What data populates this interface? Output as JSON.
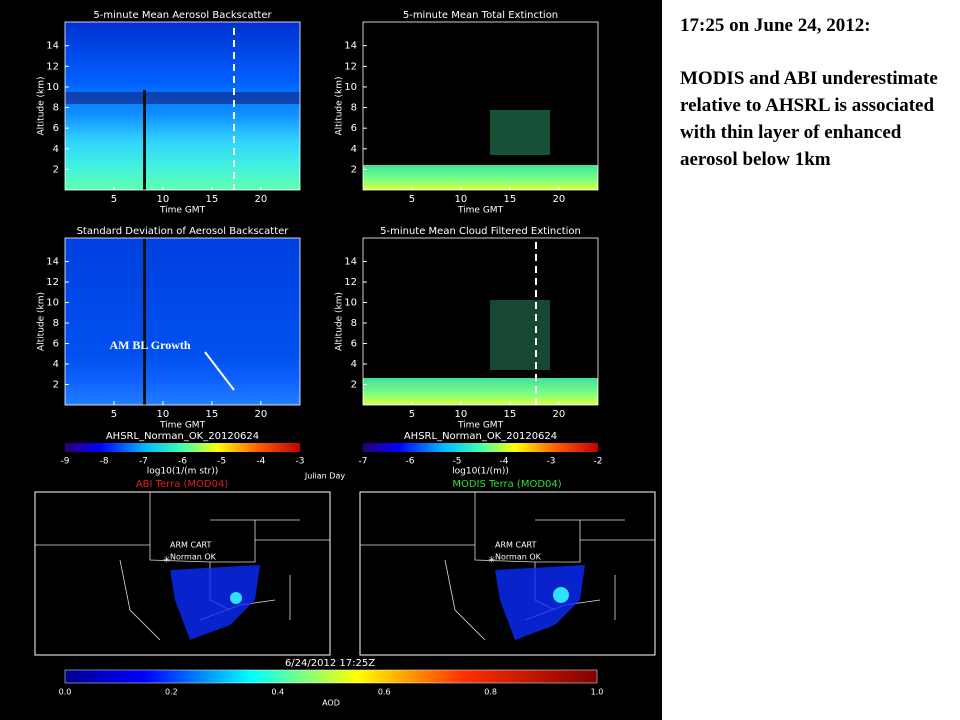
{
  "annotation": {
    "title": "17:25 on June 24, 2012:",
    "body": "MODIS and ABI underestimate relative to AHSRL is associated with thin layer of enhanced aerosol below 1km"
  },
  "panels": [
    {
      "title": "5-minute Mean Aerosol Backscatter",
      "y_label": "Altitude (km)",
      "x_label": "Time GMT",
      "yticks": [
        "2",
        "4",
        "6",
        "8",
        "10",
        "12",
        "14"
      ],
      "xticks": [
        "5",
        "10",
        "15",
        "20"
      ]
    },
    {
      "title": "5-minute Mean Total Extinction",
      "y_label": "Altitude (km)",
      "x_label": "Time GMT",
      "yticks": [
        "2",
        "4",
        "6",
        "8",
        "10",
        "12",
        "14"
      ],
      "xticks": [
        "5",
        "10",
        "15",
        "20"
      ]
    },
    {
      "title": "Standard Deviation of Aerosol Backscatter",
      "y_label": "Altitude (km)",
      "x_label": "Time GMT",
      "yticks": [
        "2",
        "4",
        "6",
        "8",
        "10",
        "12",
        "14"
      ],
      "xticks": [
        "5",
        "10",
        "15",
        "20"
      ]
    },
    {
      "title": "5-minute Mean Cloud Filtered Extinction",
      "y_label": "Altitude (km)",
      "x_label": "Time GMT",
      "yticks": [
        "2",
        "4",
        "6",
        "8",
        "10",
        "12",
        "14"
      ],
      "xticks": [
        "5",
        "10",
        "15",
        "20"
      ]
    }
  ],
  "panel_annotation": "AM BL Growth",
  "colorbars": [
    {
      "caption": "AHSRL_Norman_OK_20120624",
      "ticks": [
        "-9",
        "-8",
        "-7",
        "-6",
        "-5",
        "-4",
        "-3"
      ],
      "label": "log10(1/(m str))"
    },
    {
      "caption": "AHSRL_Norman_OK_20120624",
      "ticks": [
        "-7",
        "-6",
        "-5",
        "-4",
        "-3",
        "-2"
      ],
      "label": "log10(1/(m))"
    }
  ],
  "julian_day": "Julian Day",
  "maps": [
    {
      "title": "ABI Terra (MOD04)",
      "site": "ARM CART",
      "city": "Norman OK"
    },
    {
      "title": "MODIS Terra (MOD04)",
      "site": "ARM CART",
      "city": "Norman OK"
    }
  ],
  "map_timestamp": "6/24/2012 17:25Z",
  "aod_bar": {
    "ticks": [
      "0.0",
      "0.2",
      "0.4",
      "0.6",
      "0.8",
      "1.0"
    ],
    "label": "AOD"
  }
}
